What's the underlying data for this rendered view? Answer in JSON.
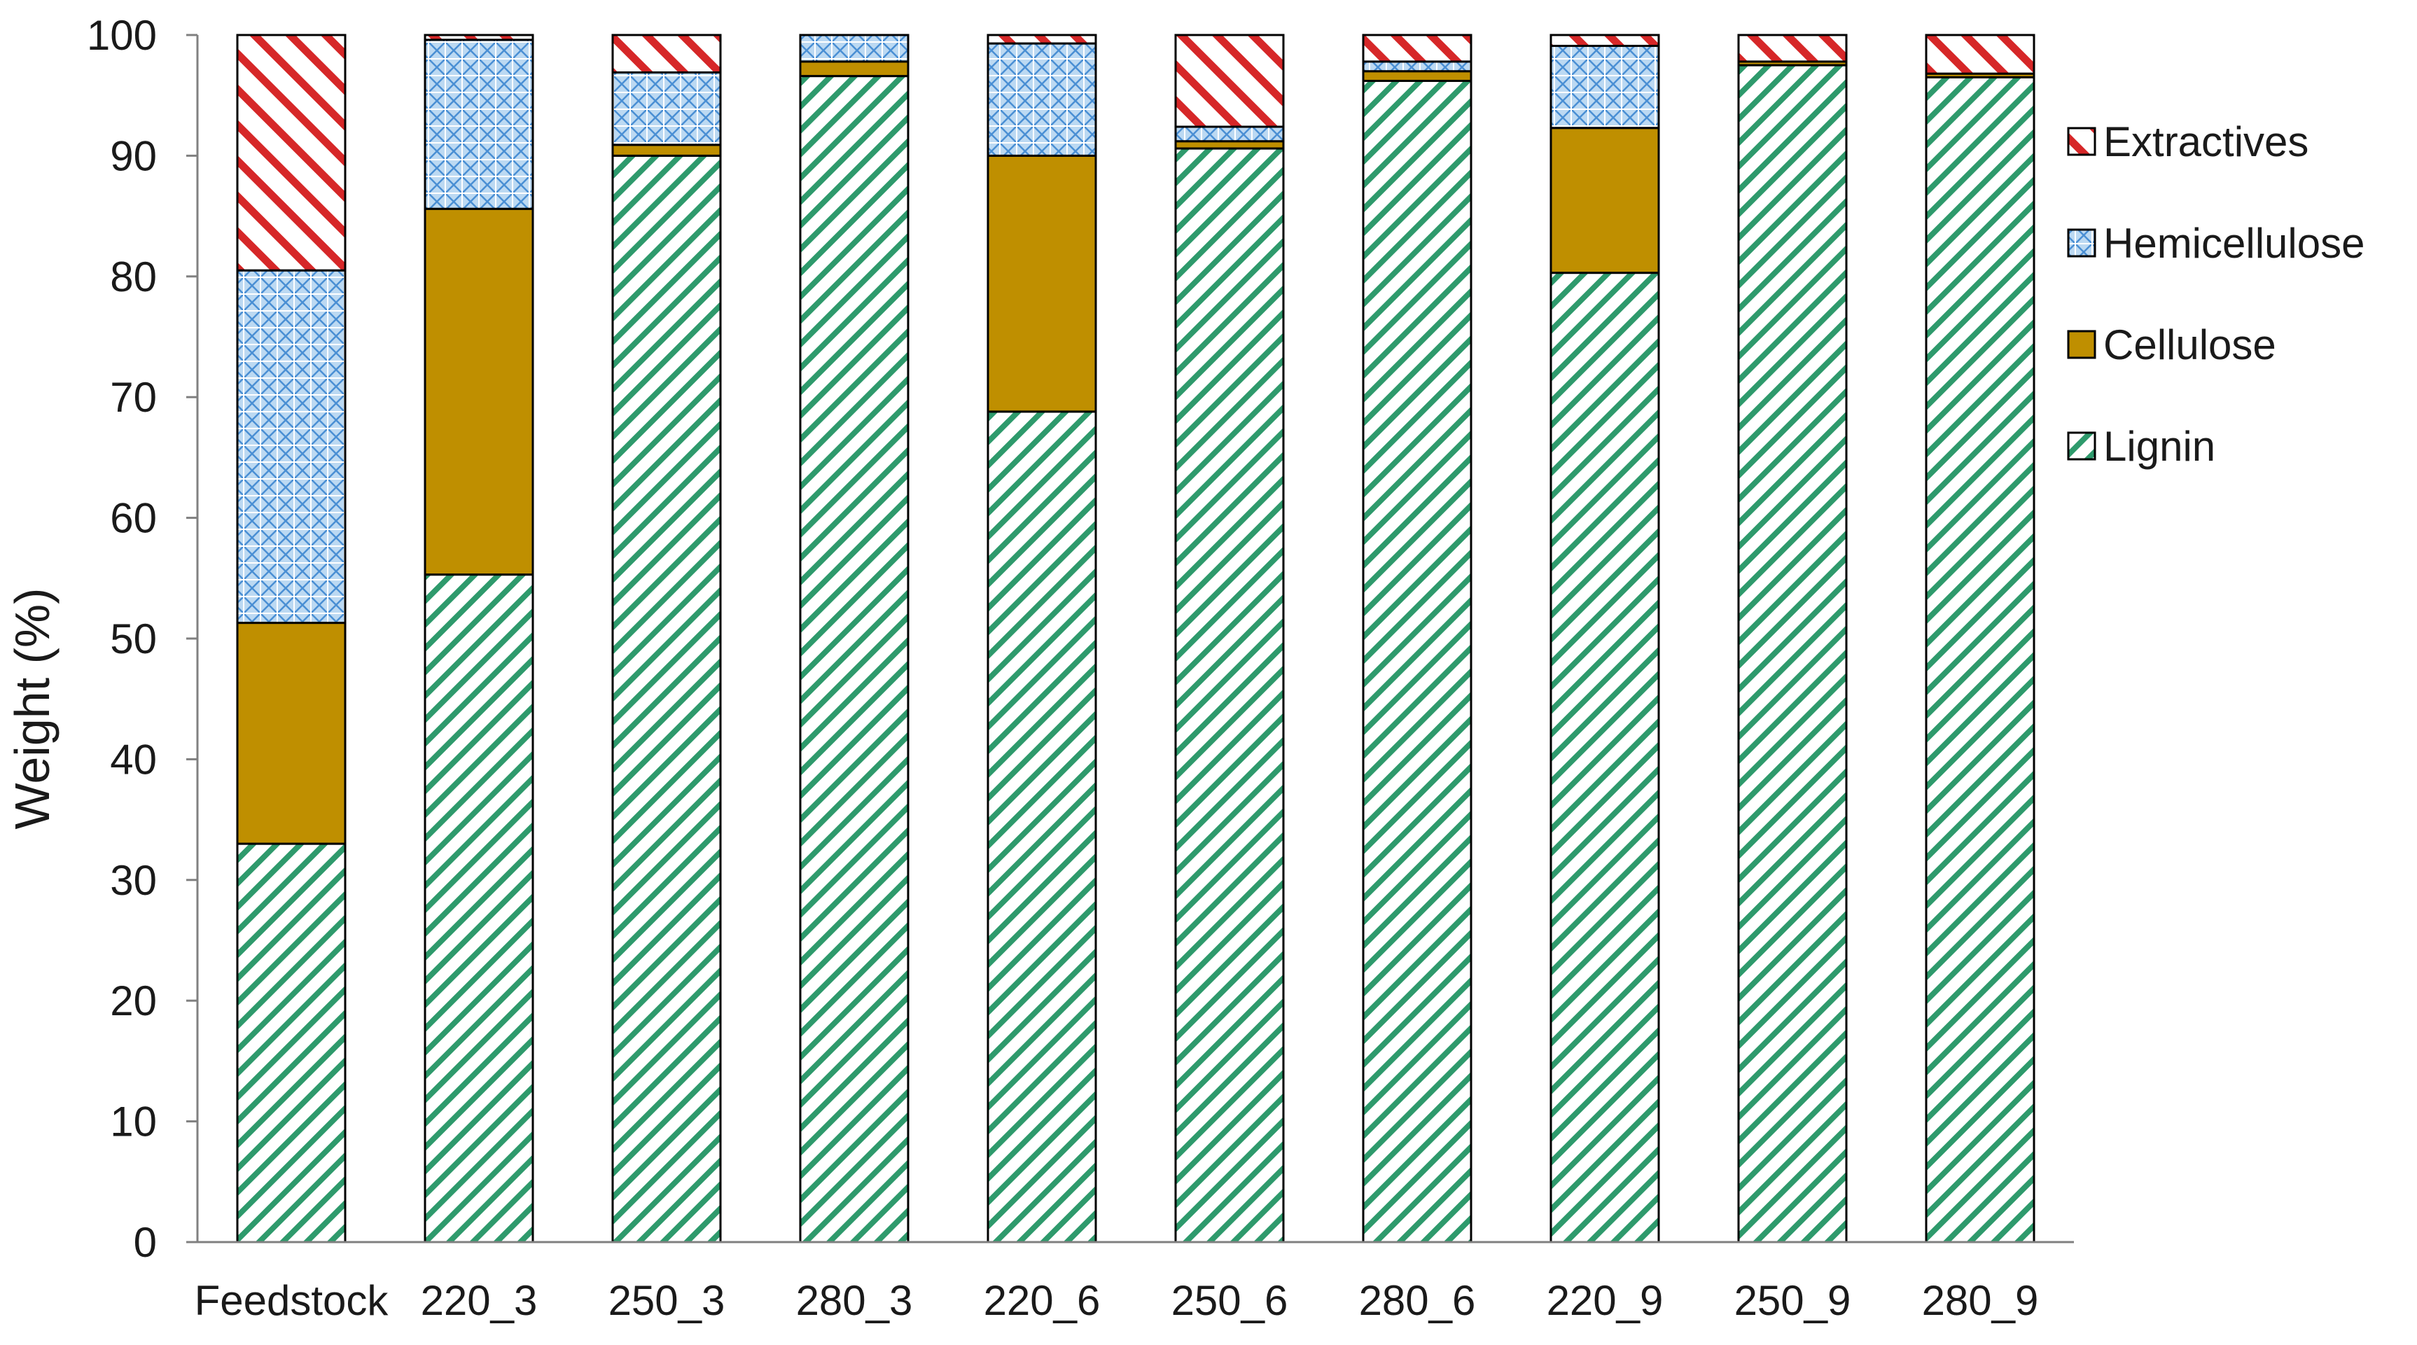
{
  "chart_data": {
    "type": "bar",
    "stacked": true,
    "title": "",
    "xlabel": "",
    "ylabel": "Weight (%)",
    "ylim": [
      0,
      100
    ],
    "yticks": [
      0,
      10,
      20,
      30,
      40,
      50,
      60,
      70,
      80,
      90,
      100
    ],
    "grid": false,
    "legend_position": "right",
    "categories": [
      "Feedstock",
      "220_3",
      "250_3",
      "280_3",
      "220_6",
      "250_6",
      "280_6",
      "220_9",
      "250_9",
      "280_9"
    ],
    "series": [
      {
        "name": "Lignin",
        "color": "#2e9a6c",
        "pattern": "diagonal-hatch",
        "values": [
          33.0,
          55.3,
          90.0,
          96.6,
          68.8,
          90.6,
          96.2,
          80.3,
          97.5,
          96.5
        ]
      },
      {
        "name": "Cellulose",
        "color": "#bf8f00",
        "pattern": "solid",
        "values": [
          18.3,
          30.3,
          0.9,
          1.2,
          21.2,
          0.6,
          0.8,
          12.0,
          0.3,
          0.3
        ]
      },
      {
        "name": "Hemicellulose",
        "color": "#5b9bd5",
        "pattern": "crosshatch",
        "values": [
          29.2,
          14.0,
          6.0,
          2.2,
          9.3,
          1.2,
          0.8,
          6.8,
          0.0,
          0.0
        ]
      },
      {
        "name": "Extractives",
        "color": "#d62728",
        "pattern": "diagonal-hatch",
        "values": [
          19.5,
          0.4,
          3.1,
          0.0,
          0.7,
          7.6,
          2.2,
          0.9,
          2.2,
          3.2
        ]
      }
    ],
    "legend_order": [
      "Extractives",
      "Hemicellulose",
      "Cellulose",
      "Lignin"
    ]
  }
}
